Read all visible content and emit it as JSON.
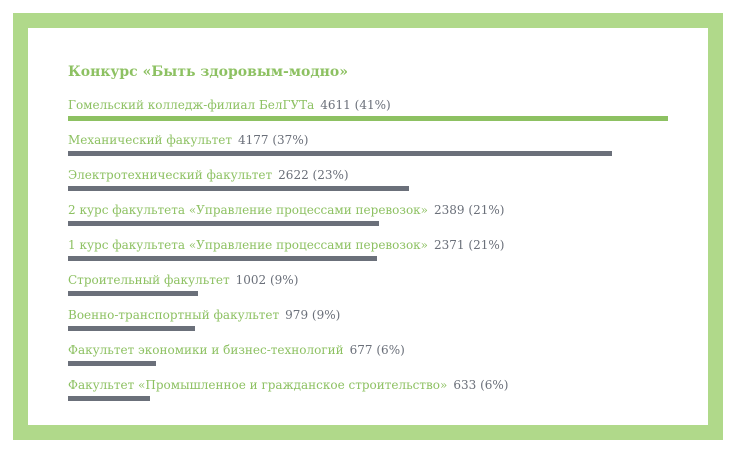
{
  "colors": {
    "frame": "#b0d98a",
    "accent": "#8dc162",
    "bar": "#6b707a",
    "value_text": "#6b707a"
  },
  "chart_data": {
    "type": "bar",
    "orientation": "horizontal",
    "title": "Конкурс «Быть здоровым-модно»",
    "categories": [
      "Гомельский колледж-филиал БелГУТа",
      "Механический факультет",
      "Электротехнический факультет",
      "2 курс факультета «Управление процессами перевозок»",
      "1 курс факультета «Управление процессами перевозок»",
      "Строительный факультет",
      "Военно-транспортный факультет",
      "Факультет экономики и бизнес-технологий",
      "Факультет «Промышленное и гражданское строительство»"
    ],
    "values": [
      4611,
      4177,
      2622,
      2389,
      2371,
      1002,
      979,
      677,
      633
    ],
    "percents": [
      "41%",
      "37%",
      "23%",
      "21%",
      "21%",
      "9%",
      "9%",
      "6%",
      "6%"
    ],
    "xlim": [
      0,
      4611
    ],
    "grid": false,
    "legend": "none"
  }
}
